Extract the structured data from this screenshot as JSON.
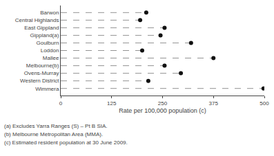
{
  "chart_data": {
    "type": "dot",
    "categories": [
      "Barwon",
      "Central Highlands",
      "East Gippland",
      "Gippland(a)",
      "Goulburn",
      "Loddon",
      "Mallee",
      "Melbourne(b)",
      "Ovens-Murray",
      "Western District",
      "Wimmera"
    ],
    "values": [
      210,
      195,
      255,
      245,
      320,
      200,
      375,
      255,
      295,
      215,
      498
    ],
    "color": "#111111",
    "marker": "circle",
    "line_style": "dashed",
    "xlabel": "Rate per 100,000 population (c)",
    "xlim": [
      0,
      500
    ],
    "xticks": [
      0,
      125,
      250,
      375,
      500
    ],
    "grid": false,
    "annotations": [
      "(a) Excludes Yarra Ranges (S) – Pt B SIA.",
      "(b) Melbourne Metropolitan Area (MMA).",
      "(c) Estimated resident population at 30 June 2009."
    ]
  }
}
